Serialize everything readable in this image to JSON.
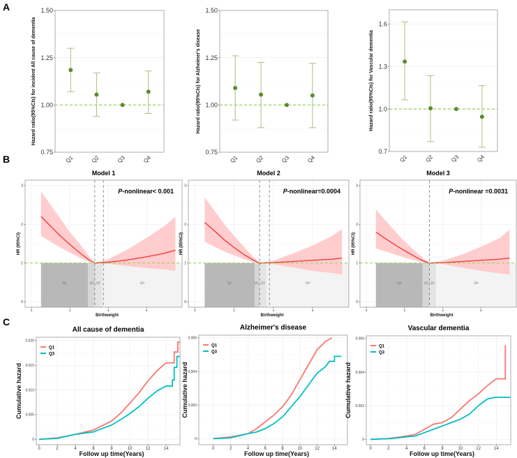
{
  "panel_labels": [
    "A",
    "B",
    "C"
  ],
  "chart_data": [
    {
      "panel": "A",
      "type": "scatter",
      "ylabel": "Hazard ratio(95%CIs) for incident All cause of dementia",
      "ylim": [
        0.75,
        1.5
      ],
      "yticks": [
        0.75,
        1.0,
        1.25,
        1.5
      ],
      "ytick_labels": [
        "0.75",
        "1.00",
        "1.25",
        "1.50"
      ],
      "categories": [
        "Q1",
        "Q2",
        "Q3",
        "Q4"
      ],
      "hr": [
        1.185,
        1.055,
        1.0,
        1.07
      ],
      "lower": [
        1.07,
        0.94,
        1.0,
        0.955
      ],
      "upper": [
        1.3,
        1.17,
        1.0,
        1.18
      ],
      "reference": 1.0
    },
    {
      "panel": "A",
      "type": "scatter",
      "ylabel": "Hazard ratio(95%CIs) for Alzheimer's disease",
      "ylim": [
        0.75,
        1.5
      ],
      "yticks": [
        0.75,
        1.0,
        1.25,
        1.5
      ],
      "ytick_labels": [
        "0.75",
        "1.00",
        "1.25",
        "1.50"
      ],
      "categories": [
        "Q1",
        "Q2",
        "Q3",
        "Q4"
      ],
      "hr": [
        1.09,
        1.055,
        1.0,
        1.05
      ],
      "lower": [
        0.92,
        0.88,
        1.0,
        0.88
      ],
      "upper": [
        1.26,
        1.225,
        1.0,
        1.22
      ],
      "reference": 1.0
    },
    {
      "panel": "A",
      "type": "scatter",
      "ylabel": "Hazard ratio(95%CIs) for Vascular dementia",
      "ylim": [
        0.7,
        1.7
      ],
      "yticks": [
        0.7,
        1.0,
        1.3,
        1.6
      ],
      "ytick_labels": [
        "0.7",
        "1.0",
        "1.3",
        "1.6"
      ],
      "categories": [
        "Q1",
        "Q2",
        "Q3",
        "Q4"
      ],
      "hr": [
        1.335,
        1.005,
        1.0,
        0.945
      ],
      "lower": [
        1.065,
        0.77,
        1.0,
        0.73
      ],
      "upper": [
        1.615,
        1.235,
        1.0,
        1.165
      ],
      "reference": 1.0
    },
    {
      "panel": "B",
      "type": "line",
      "title": "Model 1",
      "annotation_p": "P",
      "annotation_rest": "-nonlinear< 0.001",
      "xlabel": "Birthweight",
      "ylabel": "HR (95%CI)",
      "xlim": [
        -0.33,
        7.85
      ],
      "ylim": [
        -0.14,
        3.14
      ],
      "xticks": [
        0,
        2,
        4,
        6
      ],
      "xtick_labels": [
        "0",
        "2",
        "4",
        "6"
      ],
      "yticks": [
        0,
        1,
        2,
        3
      ],
      "ytick_labels": [
        "0",
        "1",
        "2",
        "3"
      ],
      "x": [
        0.5,
        1,
        1.5,
        2,
        2.5,
        3,
        3.3,
        4,
        5,
        6,
        7,
        7.5
      ],
      "y": [
        2.2,
        1.95,
        1.7,
        1.48,
        1.27,
        1.08,
        1.0,
        1.02,
        1.08,
        1.16,
        1.26,
        1.33
      ],
      "lower": [
        1.7,
        1.55,
        1.4,
        1.27,
        1.14,
        1.03,
        1.0,
        0.98,
        0.92,
        0.87,
        0.83,
        0.8
      ],
      "upper": [
        2.85,
        2.5,
        2.15,
        1.8,
        1.5,
        1.18,
        1.0,
        1.1,
        1.35,
        1.65,
        1.98,
        2.2
      ],
      "reference": 1.0,
      "cutpoints": [
        3.3,
        3.75
      ],
      "quartiles": [
        {
          "label": "Q1",
          "from": 0.5,
          "to": 2.95
        },
        {
          "label": "Q2",
          "from": 2.95,
          "to": 3.3
        },
        {
          "label": "Q3",
          "from": 3.3,
          "to": 3.7
        },
        {
          "label": "Q4",
          "from": 3.7,
          "to": 7.85
        }
      ]
    },
    {
      "panel": "B",
      "type": "line",
      "title": "Model 2",
      "annotation_p": "P",
      "annotation_rest": "-nonlinear=0.0004",
      "xlabel": "Birthweight",
      "ylabel": "HR (95%CI)",
      "xlim": [
        -0.33,
        7.85
      ],
      "ylim": [
        -0.14,
        3.14
      ],
      "xticks": [
        0,
        2,
        4,
        6
      ],
      "xtick_labels": [
        "0",
        "2",
        "4",
        "6"
      ],
      "yticks": [
        0,
        1,
        2,
        3
      ],
      "ytick_labels": [
        "0",
        "1",
        "2",
        "3"
      ],
      "x": [
        0.5,
        1,
        1.5,
        2,
        2.5,
        3,
        3.3,
        4,
        5,
        6,
        7,
        7.5
      ],
      "y": [
        2.05,
        1.83,
        1.6,
        1.4,
        1.22,
        1.07,
        1.0,
        1.01,
        1.04,
        1.07,
        1.1,
        1.13
      ],
      "lower": [
        1.55,
        1.42,
        1.3,
        1.2,
        1.1,
        1.02,
        1.0,
        0.97,
        0.88,
        0.8,
        0.74,
        0.7
      ],
      "upper": [
        2.7,
        2.35,
        2.0,
        1.7,
        1.42,
        1.15,
        1.0,
        1.06,
        1.25,
        1.45,
        1.7,
        1.88
      ],
      "reference": 1.0,
      "cutpoints": [
        3.3,
        3.8
      ],
      "quartiles": [
        {
          "label": "Q1",
          "from": 0.5,
          "to": 3.05
        },
        {
          "label": "Q2",
          "from": 3.05,
          "to": 3.3
        },
        {
          "label": "Q3",
          "from": 3.3,
          "to": 3.65
        },
        {
          "label": "Q4",
          "from": 3.65,
          "to": 7.85
        }
      ]
    },
    {
      "panel": "B",
      "type": "line",
      "title": "Model 3",
      "annotation_p": "P",
      "annotation_rest": "-nonlinear =0.0031",
      "xlabel": "Birthweight",
      "ylabel": "HR (95%CI)",
      "xlim": [
        -0.33,
        7.85
      ],
      "ylim": [
        -0.14,
        3.14
      ],
      "xticks": [
        0,
        2,
        4,
        6
      ],
      "xtick_labels": [
        "0",
        "2",
        "4",
        "6"
      ],
      "yticks": [
        0,
        1,
        2,
        3
      ],
      "ytick_labels": [
        "0",
        "1",
        "2",
        "3"
      ],
      "x": [
        0.5,
        1,
        1.5,
        2,
        2.5,
        3,
        3.3,
        4,
        5,
        6,
        7,
        7.5
      ],
      "y": [
        1.8,
        1.63,
        1.47,
        1.32,
        1.18,
        1.05,
        1.0,
        1.01,
        1.04,
        1.07,
        1.1,
        1.13
      ],
      "lower": [
        1.38,
        1.3,
        1.22,
        1.14,
        1.07,
        1.01,
        1.0,
        0.97,
        0.88,
        0.8,
        0.73,
        0.7
      ],
      "upper": [
        2.38,
        2.1,
        1.82,
        1.56,
        1.33,
        1.12,
        1.0,
        1.06,
        1.22,
        1.42,
        1.65,
        1.87
      ],
      "reference": 1.0,
      "cutpoints": [
        3.3
      ],
      "quartiles": [
        {
          "label": "Q1",
          "from": 0.5,
          "to": 2.95
        },
        {
          "label": "Q2",
          "from": 2.95,
          "to": 3.3
        },
        {
          "label": "Q3",
          "from": 3.3,
          "to": 3.65
        },
        {
          "label": "Q4",
          "from": 3.65,
          "to": 7.85
        }
      ]
    },
    {
      "panel": "C",
      "type": "line",
      "title": "All cause of dementia",
      "xlabel": "Follow up time(Years)",
      "ylabel": "Cumulative hazard",
      "xlim": [
        -0.31,
        15.54
      ],
      "ylim": [
        -0.0011,
        0.0207
      ],
      "xticks": [
        0,
        2,
        4,
        6,
        8,
        10,
        12,
        14
      ],
      "xtick_labels": [
        "0",
        "2",
        "4",
        "6",
        "8",
        "10",
        "12",
        "14"
      ],
      "yticks": [
        0,
        0.005,
        0.01,
        0.015,
        0.02
      ],
      "ytick_labels": [
        "0",
        "0.005",
        "0.010",
        "0.015",
        "0.020"
      ],
      "legend": "top-left",
      "series": [
        {
          "name": "Q1",
          "color": "#f8766d",
          "x": [
            0,
            2,
            4,
            6,
            8,
            9,
            10,
            11,
            12,
            13,
            14,
            14.9,
            14.9,
            15.3,
            15.3,
            15.5
          ],
          "y": [
            0,
            0.0003,
            0.001,
            0.0019,
            0.0037,
            0.0053,
            0.0073,
            0.0094,
            0.0118,
            0.0139,
            0.0155,
            0.0155,
            0.0177,
            0.0177,
            0.0197,
            0.0197
          ]
        },
        {
          "name": "Q3",
          "color": "#00bfc4",
          "x": [
            0,
            2,
            4,
            6,
            8,
            9,
            10,
            11,
            12,
            13,
            14,
            14.7,
            14.7,
            14.9,
            14.9,
            15.2,
            15.2,
            15.5
          ],
          "y": [
            0,
            0.0002,
            0.001,
            0.0015,
            0.0029,
            0.004,
            0.0052,
            0.0066,
            0.0083,
            0.0098,
            0.0108,
            0.0108,
            0.012,
            0.012,
            0.0146,
            0.0146,
            0.0168,
            0.0168
          ]
        }
      ]
    },
    {
      "panel": "C",
      "type": "line",
      "title": "Alzheimer's disease",
      "xlabel": "Follow up time(Years)",
      "ylabel": "Cumulative hazard",
      "xlim": [
        -1.68,
        15.5
      ],
      "ylim": [
        -0.00036,
        0.00616
      ],
      "xticks": [
        0,
        2,
        4,
        6,
        8,
        10,
        12,
        14
      ],
      "xtick_labels": [
        "0",
        "2",
        "4",
        "6",
        "8",
        "10",
        "12",
        "14"
      ],
      "yticks": [
        0,
        0.002,
        0.004,
        0.006
      ],
      "ytick_labels": [
        "0",
        "0.002",
        "0.004",
        "0.006"
      ],
      "legend": "top-left",
      "series": [
        {
          "name": "Q1",
          "color": "#f8766d",
          "x": [
            0,
            2,
            4,
            5,
            6,
            7,
            8,
            9,
            10,
            11,
            12,
            13,
            13.7
          ],
          "y": [
            0,
            0.0001,
            0.0003,
            0.0006,
            0.001,
            0.0014,
            0.0019,
            0.0026,
            0.0035,
            0.0044,
            0.0053,
            0.0058,
            0.006
          ]
        },
        {
          "name": "Q3",
          "color": "#00bfc4",
          "x": [
            0,
            2,
            4,
            5,
            6,
            7,
            8,
            9,
            10,
            11,
            12,
            13,
            13.4,
            14,
            14,
            14.8
          ],
          "y": [
            0,
            5e-05,
            0.0003,
            0.0004,
            0.0006,
            0.0009,
            0.0013,
            0.0019,
            0.0025,
            0.0032,
            0.0039,
            0.0043,
            0.0046,
            0.0046,
            0.0049,
            0.0049
          ]
        }
      ]
    },
    {
      "panel": "C",
      "type": "line",
      "title": "Vascular dementia",
      "xlabel": "Follow up time(Years)",
      "ylabel": "Cumulative hazard",
      "xlim": [
        -0.47,
        15.6
      ],
      "ylim": [
        -0.00032,
        0.00616
      ],
      "xticks": [
        0,
        2,
        4,
        6,
        8,
        10,
        12,
        14
      ],
      "xtick_labels": [
        "0",
        "2",
        "4",
        "6",
        "8",
        "10",
        "12",
        "14"
      ],
      "yticks": [
        0,
        0.002,
        0.004,
        0.006
      ],
      "ytick_labels": [
        "0",
        "0.002",
        "0.004",
        "0.006"
      ],
      "legend": "top-left",
      "series": [
        {
          "name": "Q1",
          "color": "#f8766d",
          "x": [
            0,
            2,
            4,
            5,
            6,
            7,
            8,
            9,
            10,
            11,
            12,
            13,
            14,
            15,
            15
          ],
          "y": [
            0,
            5e-05,
            0.0002,
            0.0003,
            0.0006,
            0.0009,
            0.001,
            0.0013,
            0.0018,
            0.0023,
            0.0027,
            0.0032,
            0.0036,
            0.0036,
            0.0056
          ]
        },
        {
          "name": "Q3",
          "color": "#00bfc4",
          "x": [
            0,
            2.4,
            4,
            5,
            6,
            7,
            8,
            9,
            10,
            11,
            12,
            13,
            13.8,
            15.6
          ],
          "y": [
            0,
            5e-05,
            0.00015,
            0.0002,
            0.0004,
            0.0006,
            0.0008,
            0.001,
            0.0012,
            0.0015,
            0.002,
            0.0024,
            0.0025,
            0.0025
          ]
        }
      ]
    }
  ],
  "colors": {
    "point": "#5b8c2e",
    "errorbar": "#a9bf84",
    "reference": "#92d050",
    "curve": "#f03c3c",
    "band": "#ffc4c4",
    "q1_region": "#b8b8b8",
    "q2_region": "#d6d6d6",
    "q3_region": "#e4e4e4",
    "q4_region": "#f3f3f3"
  }
}
